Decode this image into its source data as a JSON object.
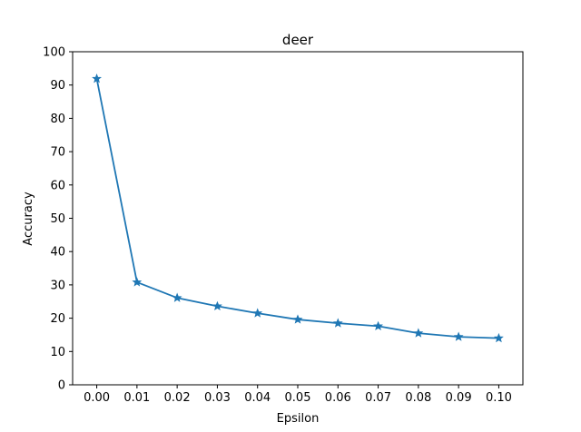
{
  "chart_data": {
    "type": "line",
    "title": "deer",
    "xlabel": "Epsilon",
    "ylabel": "Accuracy",
    "xlim": [
      -0.006,
      0.106
    ],
    "ylim": [
      0,
      100
    ],
    "x_ticks": [
      "0.00",
      "0.01",
      "0.02",
      "0.03",
      "0.04",
      "0.05",
      "0.06",
      "0.07",
      "0.08",
      "0.09",
      "0.10"
    ],
    "y_ticks": [
      "0",
      "10",
      "20",
      "30",
      "40",
      "50",
      "60",
      "70",
      "80",
      "90",
      "100"
    ],
    "grid": false,
    "marker": "star",
    "series": [
      {
        "color": "#1f77b4",
        "x": [
          0.0,
          0.01,
          0.02,
          0.03,
          0.04,
          0.05,
          0.06,
          0.07,
          0.08,
          0.09,
          0.1
        ],
        "y": [
          91.9,
          30.8,
          26.1,
          23.6,
          21.5,
          19.6,
          18.5,
          17.6,
          15.5,
          14.4,
          14.0
        ]
      }
    ]
  }
}
